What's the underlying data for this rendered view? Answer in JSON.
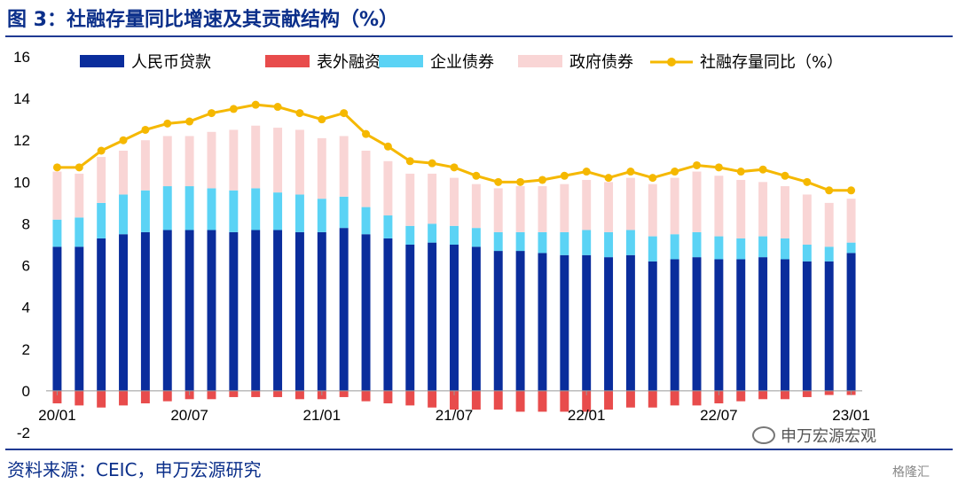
{
  "header": {
    "title": "图 3：社融存量同比增速及其贡献结构（%）"
  },
  "footer": {
    "source": "资料来源：CEIC，申万宏源研究"
  },
  "watermark": {
    "text": "申万宏源宏观"
  },
  "logo": {
    "text": "格隆汇"
  },
  "colors": {
    "loans": "#0a2d9c",
    "offbalance": "#e84c4c",
    "corp_bonds": "#5bd3f5",
    "gov_bonds": "#f9d5d5",
    "yoy": "#f5b800"
  },
  "chart_data": {
    "type": "bar",
    "stacked": true,
    "ylim": [
      -2,
      16
    ],
    "yticks": [
      -2,
      0,
      2,
      4,
      6,
      8,
      10,
      12,
      14,
      16
    ],
    "x_tick_labels": [
      "20/01",
      "20/07",
      "21/01",
      "21/07",
      "22/01",
      "22/07",
      "23/01"
    ],
    "x_tick_index": [
      0,
      6,
      12,
      18,
      24,
      30,
      36
    ],
    "legend": {
      "placement": "top",
      "entries": [
        "人民币贷款",
        "表外融资",
        "企业债券",
        "政府债券",
        "社融存量同比（%）"
      ]
    },
    "series": [
      {
        "name": "人民币贷款",
        "values": [
          6.9,
          6.9,
          7.3,
          7.5,
          7.6,
          7.7,
          7.7,
          7.7,
          7.6,
          7.7,
          7.7,
          7.6,
          7.6,
          7.8,
          7.5,
          7.3,
          7.0,
          7.1,
          7.0,
          6.9,
          6.7,
          6.7,
          6.6,
          6.5,
          6.5,
          6.4,
          6.5,
          6.2,
          6.3,
          6.4,
          6.3,
          6.3,
          6.4,
          6.3,
          6.2,
          6.2,
          6.6
        ]
      },
      {
        "name": "表外融资",
        "values": [
          -0.6,
          -0.7,
          -0.8,
          -0.7,
          -0.6,
          -0.5,
          -0.4,
          -0.4,
          -0.3,
          -0.3,
          -0.3,
          -0.4,
          -0.4,
          -0.3,
          -0.5,
          -0.6,
          -0.7,
          -0.8,
          -0.9,
          -0.9,
          -0.9,
          -1.0,
          -1.0,
          -1.0,
          -1.0,
          -0.9,
          -0.8,
          -0.8,
          -0.7,
          -0.7,
          -0.6,
          -0.5,
          -0.4,
          -0.4,
          -0.3,
          -0.2,
          -0.2
        ]
      },
      {
        "name": "企业债券",
        "values": [
          1.3,
          1.4,
          1.7,
          1.9,
          2.0,
          2.1,
          2.1,
          2.0,
          2.0,
          2.0,
          1.8,
          1.8,
          1.6,
          1.5,
          1.3,
          1.1,
          0.9,
          0.9,
          0.9,
          0.9,
          0.9,
          0.9,
          1.0,
          1.1,
          1.2,
          1.2,
          1.2,
          1.2,
          1.2,
          1.2,
          1.1,
          1.0,
          1.0,
          1.0,
          0.8,
          0.7,
          0.5
        ]
      },
      {
        "name": "政府债券",
        "values": [
          2.3,
          2.1,
          2.2,
          2.1,
          2.4,
          2.4,
          2.4,
          2.7,
          2.9,
          3.0,
          3.1,
          3.1,
          2.9,
          2.9,
          2.7,
          2.6,
          2.5,
          2.4,
          2.3,
          2.1,
          2.1,
          2.2,
          2.2,
          2.3,
          2.4,
          2.4,
          2.5,
          2.5,
          2.7,
          2.9,
          2.9,
          2.8,
          2.6,
          2.5,
          2.4,
          2.1,
          2.1
        ]
      },
      {
        "name": "社融存量同比（%）",
        "type": "line",
        "values": [
          10.7,
          10.7,
          11.5,
          12.0,
          12.5,
          12.8,
          12.9,
          13.3,
          13.5,
          13.7,
          13.6,
          13.3,
          13.0,
          13.3,
          12.3,
          11.7,
          11.0,
          10.9,
          10.7,
          10.3,
          10.0,
          10.0,
          10.1,
          10.3,
          10.5,
          10.2,
          10.5,
          10.2,
          10.5,
          10.8,
          10.7,
          10.5,
          10.6,
          10.3,
          10.0,
          9.6,
          9.6
        ]
      }
    ]
  }
}
